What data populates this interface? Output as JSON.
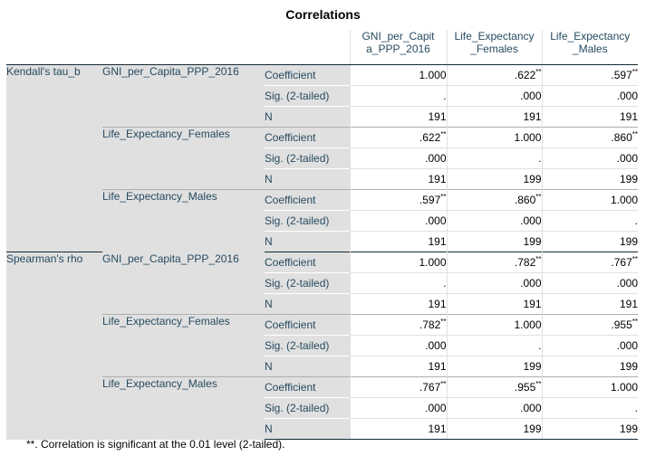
{
  "title": "Correlations",
  "header": {
    "col1": [
      "GNI_per_Capit",
      "a_PPP_2016"
    ],
    "col2": [
      "Life_Expectancy",
      "_Females"
    ],
    "col3": [
      "Life_Expectancy",
      "_Males"
    ]
  },
  "groups": [
    {
      "method": "Kendall's tau_b",
      "blocks": [
        {
          "variable": "GNI_per_Capita_PPP_2016",
          "rows": [
            {
              "stat": "Coefficient",
              "values": [
                {
                  "v": "1.000",
                  "sig": ""
                },
                {
                  "v": ".622",
                  "sig": "**"
                },
                {
                  "v": ".597",
                  "sig": "**"
                }
              ]
            },
            {
              "stat": "Sig. (2-tailed)",
              "values": [
                {
                  "v": ".",
                  "sig": ""
                },
                {
                  "v": ".000",
                  "sig": ""
                },
                {
                  "v": ".000",
                  "sig": ""
                }
              ]
            },
            {
              "stat": "N",
              "values": [
                {
                  "v": "191",
                  "sig": ""
                },
                {
                  "v": "191",
                  "sig": ""
                },
                {
                  "v": "191",
                  "sig": ""
                }
              ]
            }
          ]
        },
        {
          "variable": "Life_Expectancy_Females",
          "rows": [
            {
              "stat": "Coefficient",
              "values": [
                {
                  "v": ".622",
                  "sig": "**"
                },
                {
                  "v": "1.000",
                  "sig": ""
                },
                {
                  "v": ".860",
                  "sig": "**"
                }
              ]
            },
            {
              "stat": "Sig. (2-tailed)",
              "values": [
                {
                  "v": ".000",
                  "sig": ""
                },
                {
                  "v": ".",
                  "sig": ""
                },
                {
                  "v": ".000",
                  "sig": ""
                }
              ]
            },
            {
              "stat": "N",
              "values": [
                {
                  "v": "191",
                  "sig": ""
                },
                {
                  "v": "199",
                  "sig": ""
                },
                {
                  "v": "199",
                  "sig": ""
                }
              ]
            }
          ]
        },
        {
          "variable": "Life_Expectancy_Males",
          "rows": [
            {
              "stat": "Coefficient",
              "values": [
                {
                  "v": ".597",
                  "sig": "**"
                },
                {
                  "v": ".860",
                  "sig": "**"
                },
                {
                  "v": "1.000",
                  "sig": ""
                }
              ]
            },
            {
              "stat": "Sig. (2-tailed)",
              "values": [
                {
                  "v": ".000",
                  "sig": ""
                },
                {
                  "v": ".000",
                  "sig": ""
                },
                {
                  "v": ".",
                  "sig": ""
                }
              ]
            },
            {
              "stat": "N",
              "values": [
                {
                  "v": "191",
                  "sig": ""
                },
                {
                  "v": "199",
                  "sig": ""
                },
                {
                  "v": "199",
                  "sig": ""
                }
              ]
            }
          ]
        }
      ]
    },
    {
      "method": "Spearman's rho",
      "blocks": [
        {
          "variable": "GNI_per_Capita_PPP_2016",
          "rows": [
            {
              "stat": "Coefficient",
              "values": [
                {
                  "v": "1.000",
                  "sig": ""
                },
                {
                  "v": ".782",
                  "sig": "**"
                },
                {
                  "v": ".767",
                  "sig": "**"
                }
              ]
            },
            {
              "stat": "Sig. (2-tailed)",
              "values": [
                {
                  "v": ".",
                  "sig": ""
                },
                {
                  "v": ".000",
                  "sig": ""
                },
                {
                  "v": ".000",
                  "sig": ""
                }
              ]
            },
            {
              "stat": "N",
              "values": [
                {
                  "v": "191",
                  "sig": ""
                },
                {
                  "v": "191",
                  "sig": ""
                },
                {
                  "v": "191",
                  "sig": ""
                }
              ]
            }
          ]
        },
        {
          "variable": "Life_Expectancy_Females",
          "rows": [
            {
              "stat": "Coefficient",
              "values": [
                {
                  "v": ".782",
                  "sig": "**"
                },
                {
                  "v": "1.000",
                  "sig": ""
                },
                {
                  "v": ".955",
                  "sig": "**"
                }
              ]
            },
            {
              "stat": "Sig. (2-tailed)",
              "values": [
                {
                  "v": ".000",
                  "sig": ""
                },
                {
                  "v": ".",
                  "sig": ""
                },
                {
                  "v": ".000",
                  "sig": ""
                }
              ]
            },
            {
              "stat": "N",
              "values": [
                {
                  "v": "191",
                  "sig": ""
                },
                {
                  "v": "199",
                  "sig": ""
                },
                {
                  "v": "199",
                  "sig": ""
                }
              ]
            }
          ]
        },
        {
          "variable": "Life_Expectancy_Males",
          "rows": [
            {
              "stat": "Coefficient",
              "values": [
                {
                  "v": ".767",
                  "sig": "**"
                },
                {
                  "v": ".955",
                  "sig": "**"
                },
                {
                  "v": "1.000",
                  "sig": ""
                }
              ]
            },
            {
              "stat": "Sig. (2-tailed)",
              "values": [
                {
                  "v": ".000",
                  "sig": ""
                },
                {
                  "v": ".000",
                  "sig": ""
                },
                {
                  "v": ".",
                  "sig": ""
                }
              ]
            },
            {
              "stat": "N",
              "values": [
                {
                  "v": "191",
                  "sig": ""
                },
                {
                  "v": "199",
                  "sig": ""
                },
                {
                  "v": "199",
                  "sig": ""
                }
              ]
            }
          ]
        }
      ]
    }
  ],
  "footnote": "**. Correlation is significant at the 0.01 level (2-tailed)."
}
